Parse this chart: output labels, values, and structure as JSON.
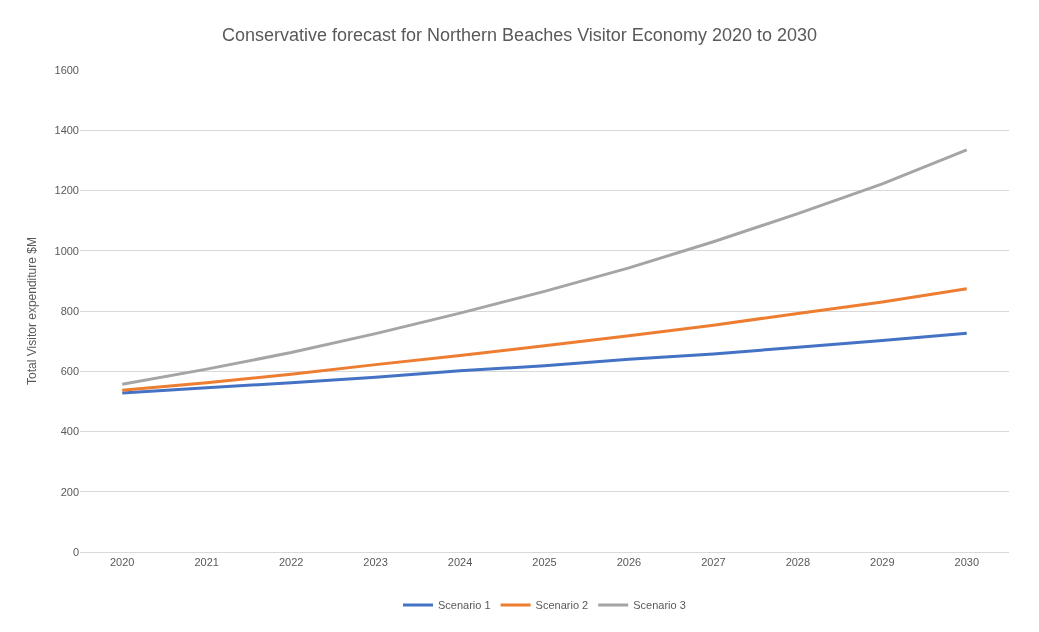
{
  "chart_data": {
    "type": "line",
    "title": "Conservative forecast for Northern Beaches Visitor Economy 2020 to 2030",
    "ylabel": "Total Visitor expenditure $M",
    "categories": [
      "2020",
      "2021",
      "2022",
      "2023",
      "2024",
      "2025",
      "2026",
      "2027",
      "2028",
      "2029",
      "2030"
    ],
    "series": [
      {
        "name": "Scenario 1",
        "color": "#4472c4",
        "values": [
          528,
          545,
          562,
          580,
          602,
          618,
          640,
          657,
          680,
          702,
          726
        ]
      },
      {
        "name": "Scenario 2",
        "color": "#ed7d31",
        "values": [
          537,
          562,
          590,
          622,
          652,
          685,
          718,
          753,
          792,
          830,
          874
        ]
      },
      {
        "name": "Scenario 3",
        "color": "#a5a5a5",
        "values": [
          557,
          607,
          662,
          725,
          793,
          865,
          943,
          1030,
          1123,
          1222,
          1335
        ]
      }
    ],
    "ylim": [
      0,
      1600
    ],
    "yticks": [
      0,
      200,
      400,
      600,
      800,
      1000,
      1200,
      1400,
      1600
    ],
    "grid": "y",
    "legend": "bottom",
    "marker": "none",
    "line_style": "solid"
  }
}
